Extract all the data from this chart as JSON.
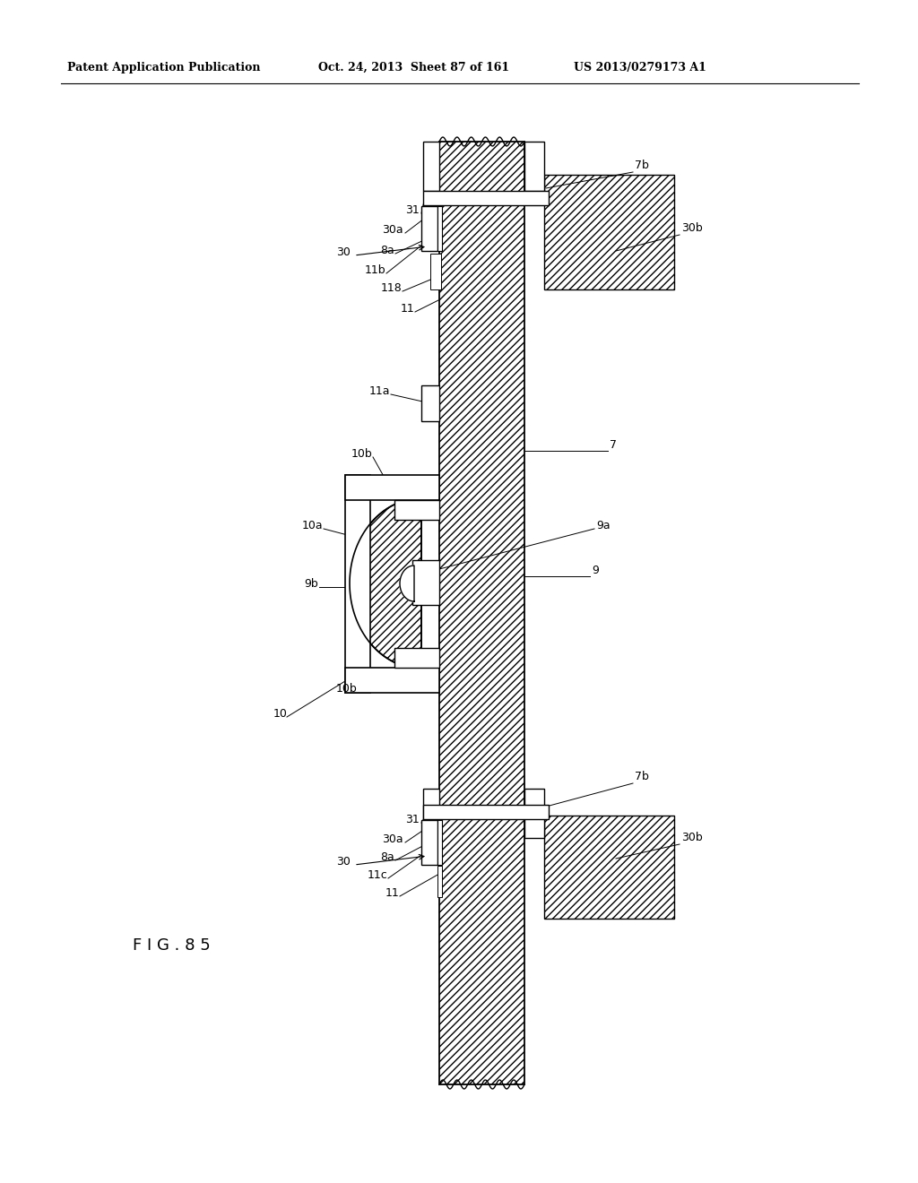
{
  "header_left": "Patent Application Publication",
  "header_mid": "Oct. 24, 2013  Sheet 87 of 161",
  "header_right": "US 2013/0279173 A1",
  "figure_label": "F I G . 8 5",
  "bg_color": "#ffffff",
  "line_color": "#000000"
}
